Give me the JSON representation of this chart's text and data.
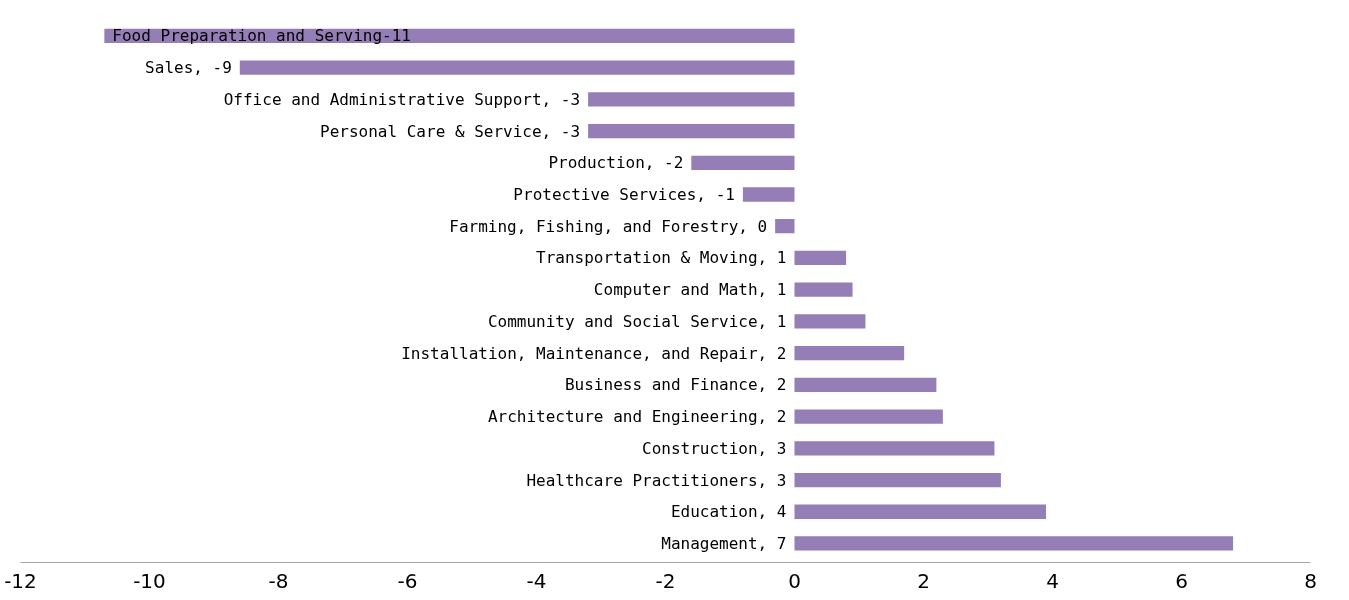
{
  "chart_data": {
    "type": "bar",
    "orientation": "horizontal",
    "categories": [
      "Food Preparation and Serving",
      "Sales",
      "Office and Administrative Support",
      "Personal Care & Service",
      "Production",
      "Protective Services",
      "Farming, Fishing, and Forestry",
      "Transportation & Moving",
      "Computer and Math",
      "Community and Social Service",
      "Installation, Maintenance, and Repair",
      "Business and Finance",
      "Architecture and Engineering",
      "Construction",
      "Healthcare Practitioners",
      "Education",
      "Management"
    ],
    "values": [
      -10.7,
      -8.6,
      -3.2,
      -3.2,
      -1.6,
      -0.8,
      -0.3,
      0.8,
      0.9,
      1.1,
      1.7,
      2.2,
      2.3,
      3.1,
      3.2,
      3.9,
      6.8
    ],
    "value_labels": [
      " -11",
      ", -9",
      ", -3",
      ", -3",
      ", -2",
      ", -1",
      ", 0",
      ", 1",
      ", 1",
      ", 1",
      ", 2",
      ", 2",
      ", 2",
      ", 3",
      ", 3",
      ", 4",
      ", 7"
    ],
    "color": "#957db5",
    "xlim": [
      -12,
      8
    ],
    "xticks": [
      -12,
      -10,
      -8,
      -6,
      -4,
      -2,
      0,
      2,
      4,
      6,
      8
    ],
    "grid": false,
    "tick_labels": "x"
  }
}
